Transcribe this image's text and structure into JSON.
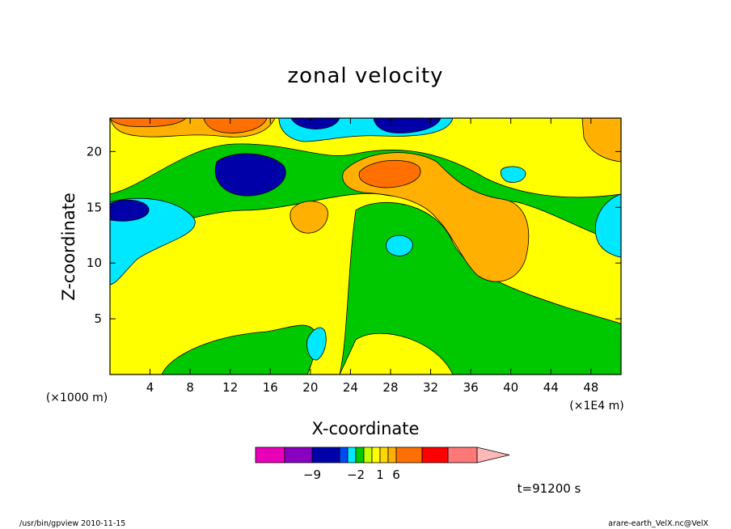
{
  "chart_data": {
    "type": "heatmap",
    "title": "zonal velocity",
    "xlabel": "X-coordinate",
    "ylabel": "Z-coordinate",
    "x_unit_left": "(×1000 m)",
    "x_unit_right": "(×1E4 m)",
    "x_ticks": [
      4,
      8,
      12,
      16,
      20,
      24,
      28,
      32,
      36,
      40,
      44,
      48
    ],
    "y_ticks": [
      5,
      10,
      15,
      20
    ],
    "xlim": [
      0,
      51
    ],
    "ylim": [
      0,
      23
    ],
    "colorbar": {
      "colors": [
        "#e800b8",
        "#8a00c0",
        "#0000a8",
        "#0048f0",
        "#00e8ff",
        "#00c800",
        "#c8ff00",
        "#ffff00",
        "#ffd800",
        "#ffb000",
        "#ff7000",
        "#ff0000",
        "#ff7878",
        "#ffb8b8"
      ],
      "tick_labels": [
        {
          "label": "−9",
          "boundary": 2
        },
        {
          "label": "−2",
          "boundary": 5
        },
        {
          "label": "1",
          "boundary": 8
        },
        {
          "label": "6",
          "boundary": 10
        }
      ]
    },
    "time_label": "t=91200 s"
  },
  "footer": {
    "left": "/usr/bin/gpview   2010-11-15",
    "right": "arare-earth_VelX.nc@VelX"
  }
}
